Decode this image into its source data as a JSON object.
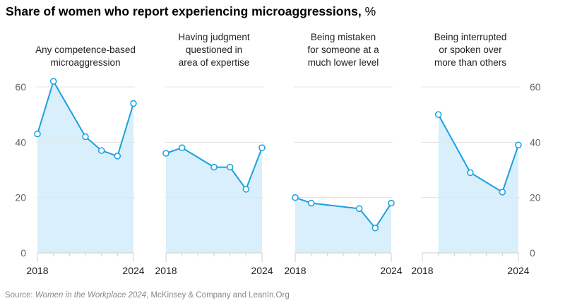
{
  "chart_data": {
    "type": "area",
    "title": "Share of women who report experiencing microaggressions,",
    "title_unit": "%",
    "ylim": [
      0,
      60
    ],
    "yticks": [
      0,
      20,
      40,
      60
    ],
    "xlim": [
      2018,
      2024
    ],
    "xtick_labels": [
      "2018",
      "2024"
    ],
    "grid": true,
    "y_axis_placement": "left of first panel and right of last panel",
    "colors": {
      "line": "#1aa0e0",
      "fill": "#d9effb",
      "grid": "#e3e3e3",
      "marker_fill": "#ffffff"
    },
    "panels": [
      {
        "title_lines": [
          "Any competence-based",
          "microaggression"
        ],
        "x": [
          2018,
          2019,
          2021,
          2022,
          2023,
          2024
        ],
        "values": [
          43,
          62,
          42,
          37,
          35,
          54
        ]
      },
      {
        "title_lines": [
          "Having judgment",
          "questioned in",
          "area of expertise"
        ],
        "x": [
          2018,
          2019,
          2021,
          2022,
          2023,
          2024
        ],
        "values": [
          36,
          38,
          31,
          31,
          23,
          38
        ]
      },
      {
        "title_lines": [
          "Being mistaken",
          "for someone at a",
          "much lower level"
        ],
        "x": [
          2018,
          2019,
          2022,
          2023,
          2024
        ],
        "values": [
          20,
          18,
          16,
          9,
          18
        ]
      },
      {
        "title_lines": [
          "Being interrupted",
          "or spoken over",
          "more than others"
        ],
        "x": [
          2019,
          2021,
          2023,
          2024
        ],
        "values": [
          50,
          29,
          22,
          39
        ]
      }
    ],
    "source_prefix": "Source: ",
    "source_italic": "Women in the Workplace 2024",
    "source_suffix": ", McKinsey & Company and LeanIn.Org"
  }
}
